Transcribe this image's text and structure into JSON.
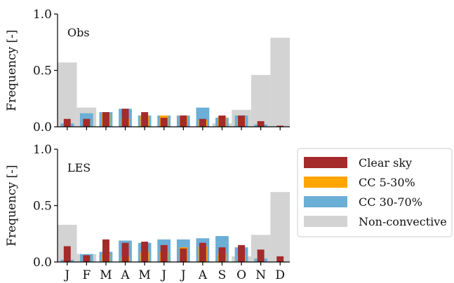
{
  "chart_data": {
    "type": "bar",
    "categories": [
      "J",
      "F",
      "M",
      "A",
      "M",
      "J",
      "J",
      "A",
      "S",
      "O",
      "N",
      "D"
    ],
    "ylim": [
      0,
      1.0
    ],
    "yticks": [
      "0.0",
      "0.5",
      "1.0"
    ],
    "grid": false,
    "legend_position": "right",
    "legend_entries": [
      "Clear sky",
      "CC 5-30%",
      "CC 30-70%",
      "Non-convective"
    ],
    "colors": {
      "Clear sky": "#a52a2a",
      "CC 5-30%": "#ffa500",
      "CC 30-70%": "#6baed6",
      "Non-convective": "#d3d3d3"
    },
    "panels": [
      {
        "label": "Obs",
        "ylabel": "Frequency [-]",
        "series": [
          {
            "name": "Non-convective",
            "values": [
              0.57,
              0.17,
              0.0,
              0.0,
              0.0,
              0.0,
              0.0,
              0.0,
              0.03,
              0.15,
              0.46,
              0.79
            ]
          },
          {
            "name": "CC 30-70%",
            "values": [
              0.03,
              0.12,
              0.13,
              0.16,
              0.1,
              0.1,
              0.1,
              0.17,
              0.08,
              0.1,
              0.02,
              0.0
            ]
          },
          {
            "name": "CC 5-30%",
            "values": [
              0.0,
              0.0,
              0.12,
              0.07,
              0.1,
              0.1,
              0.1,
              0.06,
              0.09,
              0.08,
              0.0,
              0.0
            ]
          },
          {
            "name": "Clear sky",
            "values": [
              0.07,
              0.07,
              0.13,
              0.16,
              0.13,
              0.08,
              0.1,
              0.07,
              0.1,
              0.1,
              0.05,
              0.01
            ]
          }
        ]
      },
      {
        "label": "LES",
        "ylabel": "Frequency [-]",
        "series": [
          {
            "name": "Non-convective",
            "values": [
              0.33,
              0.07,
              0.0,
              0.0,
              0.0,
              0.0,
              0.0,
              0.0,
              0.0,
              0.05,
              0.24,
              0.62
            ]
          },
          {
            "name": "CC 30-70%",
            "values": [
              0.02,
              0.07,
              0.09,
              0.19,
              0.17,
              0.2,
              0.2,
              0.21,
              0.23,
              0.13,
              0.03,
              0.0
            ]
          },
          {
            "name": "CC 5-30%",
            "values": [
              0.0,
              0.0,
              0.07,
              0.05,
              0.09,
              0.09,
              0.13,
              0.14,
              0.08,
              0.06,
              0.0,
              0.0
            ]
          },
          {
            "name": "Clear sky",
            "values": [
              0.14,
              0.06,
              0.2,
              0.17,
              0.18,
              0.15,
              0.12,
              0.17,
              0.13,
              0.15,
              0.11,
              0.05
            ]
          }
        ]
      }
    ]
  }
}
